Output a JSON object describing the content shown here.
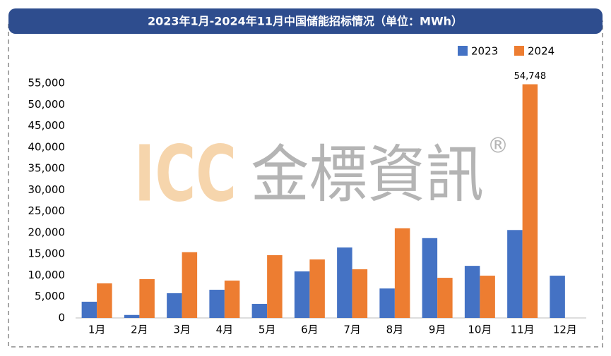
{
  "chart_data": {
    "type": "bar",
    "title": "2023年1月-2024年11月中国储能招标情况（单位：MWh）",
    "watermark": [
      "ICC",
      "金標資訊",
      "®"
    ],
    "categories": [
      "1月",
      "2月",
      "3月",
      "4月",
      "5月",
      "6月",
      "7月",
      "8月",
      "9月",
      "10月",
      "11月",
      "12月"
    ],
    "series": [
      {
        "name": "2023",
        "color": "#4472c4",
        "values": [
          3800,
          700,
          5800,
          6600,
          3300,
          10900,
          16500,
          6900,
          18700,
          12200,
          20600,
          9900
        ]
      },
      {
        "name": "2024",
        "color": "#ed7d31",
        "values": [
          8100,
          9100,
          15400,
          8750,
          14700,
          13700,
          11400,
          21000,
          9400,
          9900,
          54748,
          null
        ],
        "value_labels": [
          null,
          null,
          null,
          null,
          null,
          null,
          null,
          null,
          null,
          null,
          "54,748",
          null
        ]
      }
    ],
    "ylim": [
      0,
      55000
    ],
    "yticks": [
      0,
      {
        "value": 5000,
        "label": "5,000"
      },
      {
        "value": 10000,
        "label": "10,000"
      },
      {
        "value": 15000,
        "label": "15,000"
      },
      {
        "value": 20000,
        "label": "20,000"
      },
      {
        "value": 25000,
        "label": "25,000"
      },
      {
        "value": 30000,
        "label": "30,000"
      },
      {
        "value": 35000,
        "label": "35,000"
      },
      {
        "value": 40000,
        "label": "40,000"
      },
      {
        "value": 45000,
        "label": "45,000"
      },
      {
        "value": 50000,
        "label": "50,000"
      },
      {
        "value": 55000,
        "label": "55,000"
      }
    ],
    "grid": false,
    "legend": "top-right"
  }
}
